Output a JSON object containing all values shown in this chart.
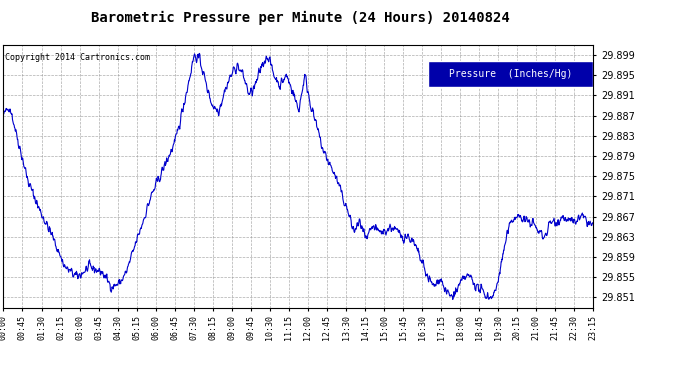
{
  "title": "Barometric Pressure per Minute (24 Hours) 20140824",
  "copyright": "Copyright 2014 Cartronics.com",
  "legend_label": "Pressure  (Inches/Hg)",
  "line_color": "#0000CC",
  "background_color": "#ffffff",
  "grid_color": "#aaaaaa",
  "ylim": [
    29.849,
    29.901
  ],
  "yticks": [
    29.851,
    29.855,
    29.859,
    29.863,
    29.867,
    29.871,
    29.875,
    29.879,
    29.883,
    29.887,
    29.891,
    29.895,
    29.899
  ],
  "xtick_labels": [
    "00:00",
    "00:45",
    "01:30",
    "02:15",
    "03:00",
    "03:45",
    "04:30",
    "05:15",
    "06:00",
    "06:45",
    "07:30",
    "08:15",
    "09:00",
    "09:45",
    "10:30",
    "11:15",
    "12:00",
    "12:45",
    "13:30",
    "14:15",
    "15:00",
    "15:45",
    "16:30",
    "17:15",
    "18:00",
    "18:45",
    "19:30",
    "20:15",
    "21:00",
    "21:45",
    "22:30",
    "23:15"
  ],
  "waypoints": [
    [
      0,
      29.887
    ],
    [
      15,
      29.889
    ],
    [
      30,
      29.884
    ],
    [
      60,
      29.874
    ],
    [
      90,
      29.868
    ],
    [
      120,
      29.863
    ],
    [
      150,
      29.857
    ],
    [
      180,
      29.855
    ],
    [
      210,
      29.857
    ],
    [
      240,
      29.856
    ],
    [
      265,
      29.853
    ],
    [
      285,
      29.854
    ],
    [
      300,
      29.856
    ],
    [
      360,
      29.871
    ],
    [
      420,
      29.882
    ],
    [
      450,
      29.893
    ],
    [
      465,
      29.899
    ],
    [
      480,
      29.898
    ],
    [
      495,
      29.893
    ],
    [
      510,
      29.889
    ],
    [
      525,
      29.888
    ],
    [
      540,
      29.892
    ],
    [
      555,
      29.895
    ],
    [
      570,
      29.897
    ],
    [
      585,
      29.895
    ],
    [
      600,
      29.891
    ],
    [
      615,
      29.893
    ],
    [
      630,
      29.897
    ],
    [
      645,
      29.899
    ],
    [
      660,
      29.895
    ],
    [
      675,
      29.893
    ],
    [
      690,
      29.895
    ],
    [
      705,
      29.892
    ],
    [
      720,
      29.888
    ],
    [
      735,
      29.895
    ],
    [
      750,
      29.889
    ],
    [
      780,
      29.88
    ],
    [
      810,
      29.875
    ],
    [
      840,
      29.868
    ],
    [
      855,
      29.864
    ],
    [
      870,
      29.866
    ],
    [
      885,
      29.862
    ],
    [
      900,
      29.865
    ],
    [
      915,
      29.864
    ],
    [
      930,
      29.864
    ],
    [
      945,
      29.865
    ],
    [
      960,
      29.864
    ],
    [
      975,
      29.863
    ],
    [
      990,
      29.863
    ],
    [
      1005,
      29.861
    ],
    [
      1020,
      29.858
    ],
    [
      1035,
      29.855
    ],
    [
      1050,
      29.853
    ],
    [
      1065,
      29.855
    ],
    [
      1080,
      29.852
    ],
    [
      1095,
      29.851
    ],
    [
      1110,
      29.853
    ],
    [
      1125,
      29.855
    ],
    [
      1140,
      29.855
    ],
    [
      1155,
      29.853
    ],
    [
      1170,
      29.852
    ],
    [
      1185,
      29.851
    ],
    [
      1200,
      29.852
    ],
    [
      1215,
      29.858
    ],
    [
      1230,
      29.864
    ],
    [
      1245,
      29.867
    ],
    [
      1260,
      29.867
    ],
    [
      1275,
      29.866
    ],
    [
      1290,
      29.866
    ],
    [
      1305,
      29.864
    ],
    [
      1320,
      29.863
    ],
    [
      1335,
      29.866
    ],
    [
      1350,
      29.866
    ],
    [
      1365,
      29.867
    ],
    [
      1380,
      29.866
    ],
    [
      1395,
      29.866
    ],
    [
      1410,
      29.867
    ],
    [
      1425,
      29.866
    ],
    [
      1439,
      29.865
    ]
  ]
}
